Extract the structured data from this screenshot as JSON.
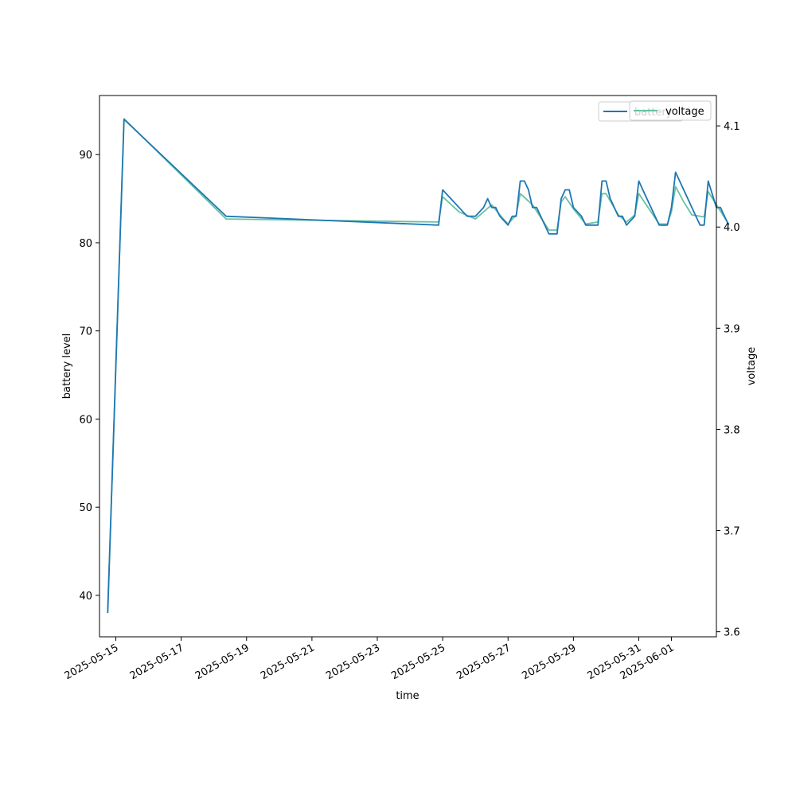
{
  "chart_data": {
    "type": "line",
    "xlabel": "time",
    "y_left_label": "battery level",
    "y_right_label": "voltage",
    "xlim": [
      "2025-05-14T12:00",
      "2025-06-02T09:00"
    ],
    "y_left_lim": [
      35.3,
      96.7
    ],
    "y_right_lim": [
      3.595,
      4.13
    ],
    "x_ticks": [
      "2025-05-15",
      "2025-05-17",
      "2025-05-19",
      "2025-05-21",
      "2025-05-23",
      "2025-05-25",
      "2025-05-27",
      "2025-05-29",
      "2025-05-31",
      "2025-06-01"
    ],
    "y_left_ticks": [
      40,
      50,
      60,
      70,
      80,
      90
    ],
    "y_right_ticks": [
      3.6,
      3.7,
      3.8,
      3.9,
      4.0,
      4.1
    ],
    "y_right_tick_labels": [
      "3.6",
      "3.7",
      "3.8",
      "3.9",
      "4.0",
      "4.1"
    ],
    "grid": false,
    "legend_position": "upper right",
    "colors": {
      "battery": "#1f77b4",
      "voltage": "#66c2a5"
    },
    "series": [
      {
        "name": "battery",
        "axis": "left",
        "points": [
          [
            "2025-05-14T18:00",
            38
          ],
          [
            "2025-05-15T06:00",
            94
          ],
          [
            "2025-05-18T09:00",
            83
          ],
          [
            "2025-05-24T21:00",
            82
          ],
          [
            "2025-05-25T00:00",
            86
          ],
          [
            "2025-05-25T12:00",
            84
          ],
          [
            "2025-05-25T18:00",
            83
          ],
          [
            "2025-05-26T00:00",
            83
          ],
          [
            "2025-05-26T06:00",
            84
          ],
          [
            "2025-05-26T09:00",
            85
          ],
          [
            "2025-05-26T12:00",
            84
          ],
          [
            "2025-05-26T15:00",
            84
          ],
          [
            "2025-05-26T18:00",
            83
          ],
          [
            "2025-05-26T21:00",
            82.5
          ],
          [
            "2025-05-27T00:00",
            82
          ],
          [
            "2025-05-27T03:00",
            83
          ],
          [
            "2025-05-27T06:00",
            83
          ],
          [
            "2025-05-27T09:00",
            87
          ],
          [
            "2025-05-27T12:00",
            87
          ],
          [
            "2025-05-27T15:00",
            86
          ],
          [
            "2025-05-27T18:00",
            84
          ],
          [
            "2025-05-27T21:00",
            84
          ],
          [
            "2025-05-28T06:00",
            81
          ],
          [
            "2025-05-28T12:00",
            81
          ],
          [
            "2025-05-28T15:00",
            85
          ],
          [
            "2025-05-28T18:00",
            86
          ],
          [
            "2025-05-28T21:00",
            86
          ],
          [
            "2025-05-29T00:00",
            84
          ],
          [
            "2025-05-29T06:00",
            83
          ],
          [
            "2025-05-29T09:00",
            82
          ],
          [
            "2025-05-29T18:00",
            82
          ],
          [
            "2025-05-29T21:00",
            87
          ],
          [
            "2025-05-30T00:00",
            87
          ],
          [
            "2025-05-30T03:00",
            85
          ],
          [
            "2025-05-30T09:00",
            83
          ],
          [
            "2025-05-30T12:00",
            83
          ],
          [
            "2025-05-30T15:00",
            82
          ],
          [
            "2025-05-30T21:00",
            83
          ],
          [
            "2025-05-31T00:00",
            87
          ],
          [
            "2025-05-31T03:00",
            86
          ],
          [
            "2025-05-31T06:00",
            85
          ],
          [
            "2025-05-31T15:00",
            82
          ],
          [
            "2025-05-31T21:00",
            82
          ],
          [
            "2025-06-01T00:00",
            84
          ],
          [
            "2025-06-01T03:00",
            88
          ],
          [
            "2025-06-01T06:00",
            87
          ],
          [
            "2025-06-01T12:00",
            85
          ],
          [
            "2025-06-01T15:00",
            84
          ],
          [
            "2025-06-01T18:00",
            83
          ],
          [
            "2025-06-01T21:00",
            82
          ],
          [
            "2025-06-02T00:00",
            82
          ],
          [
            "2025-06-02T03:00",
            87
          ],
          [
            "2025-06-02T09:00",
            84
          ],
          [
            "2025-06-02T12:00",
            84
          ],
          [
            "2025-06-02T18:00",
            82
          ]
        ]
      },
      {
        "name": "voltage",
        "axis": "right",
        "points": [
          [
            "2025-05-14T18:00",
            3.62
          ],
          [
            "2025-05-15T06:00",
            4.107
          ],
          [
            "2025-05-18T09:00",
            4.008
          ],
          [
            "2025-05-24T21:00",
            4.005
          ],
          [
            "2025-05-25T00:00",
            4.03
          ],
          [
            "2025-05-25T12:00",
            4.015
          ],
          [
            "2025-05-26T00:00",
            4.008
          ],
          [
            "2025-05-26T12:00",
            4.022
          ],
          [
            "2025-05-26T18:00",
            4.012
          ],
          [
            "2025-05-27T00:00",
            4.003
          ],
          [
            "2025-05-27T06:00",
            4.012
          ],
          [
            "2025-05-27T09:00",
            4.033
          ],
          [
            "2025-05-27T18:00",
            4.022
          ],
          [
            "2025-05-28T06:00",
            3.997
          ],
          [
            "2025-05-28T12:00",
            3.997
          ],
          [
            "2025-05-28T15:00",
            4.025
          ],
          [
            "2025-05-28T18:00",
            4.03
          ],
          [
            "2025-05-29T00:00",
            4.018
          ],
          [
            "2025-05-29T09:00",
            4.003
          ],
          [
            "2025-05-29T18:00",
            4.005
          ],
          [
            "2025-05-29T21:00",
            4.033
          ],
          [
            "2025-05-30T00:00",
            4.033
          ],
          [
            "2025-05-30T09:00",
            4.012
          ],
          [
            "2025-05-30T15:00",
            4.005
          ],
          [
            "2025-05-30T21:00",
            4.012
          ],
          [
            "2025-05-31T00:00",
            4.033
          ],
          [
            "2025-05-31T15:00",
            4.003
          ],
          [
            "2025-05-31T21:00",
            4.003
          ],
          [
            "2025-06-01T00:00",
            4.015
          ],
          [
            "2025-06-01T03:00",
            4.04
          ],
          [
            "2025-06-01T09:00",
            4.025
          ],
          [
            "2025-06-01T15:00",
            4.012
          ],
          [
            "2025-06-02T00:00",
            4.01
          ],
          [
            "2025-06-02T03:00",
            4.035
          ],
          [
            "2025-06-02T09:00",
            4.022
          ],
          [
            "2025-06-02T18:00",
            4.003
          ]
        ]
      }
    ]
  }
}
